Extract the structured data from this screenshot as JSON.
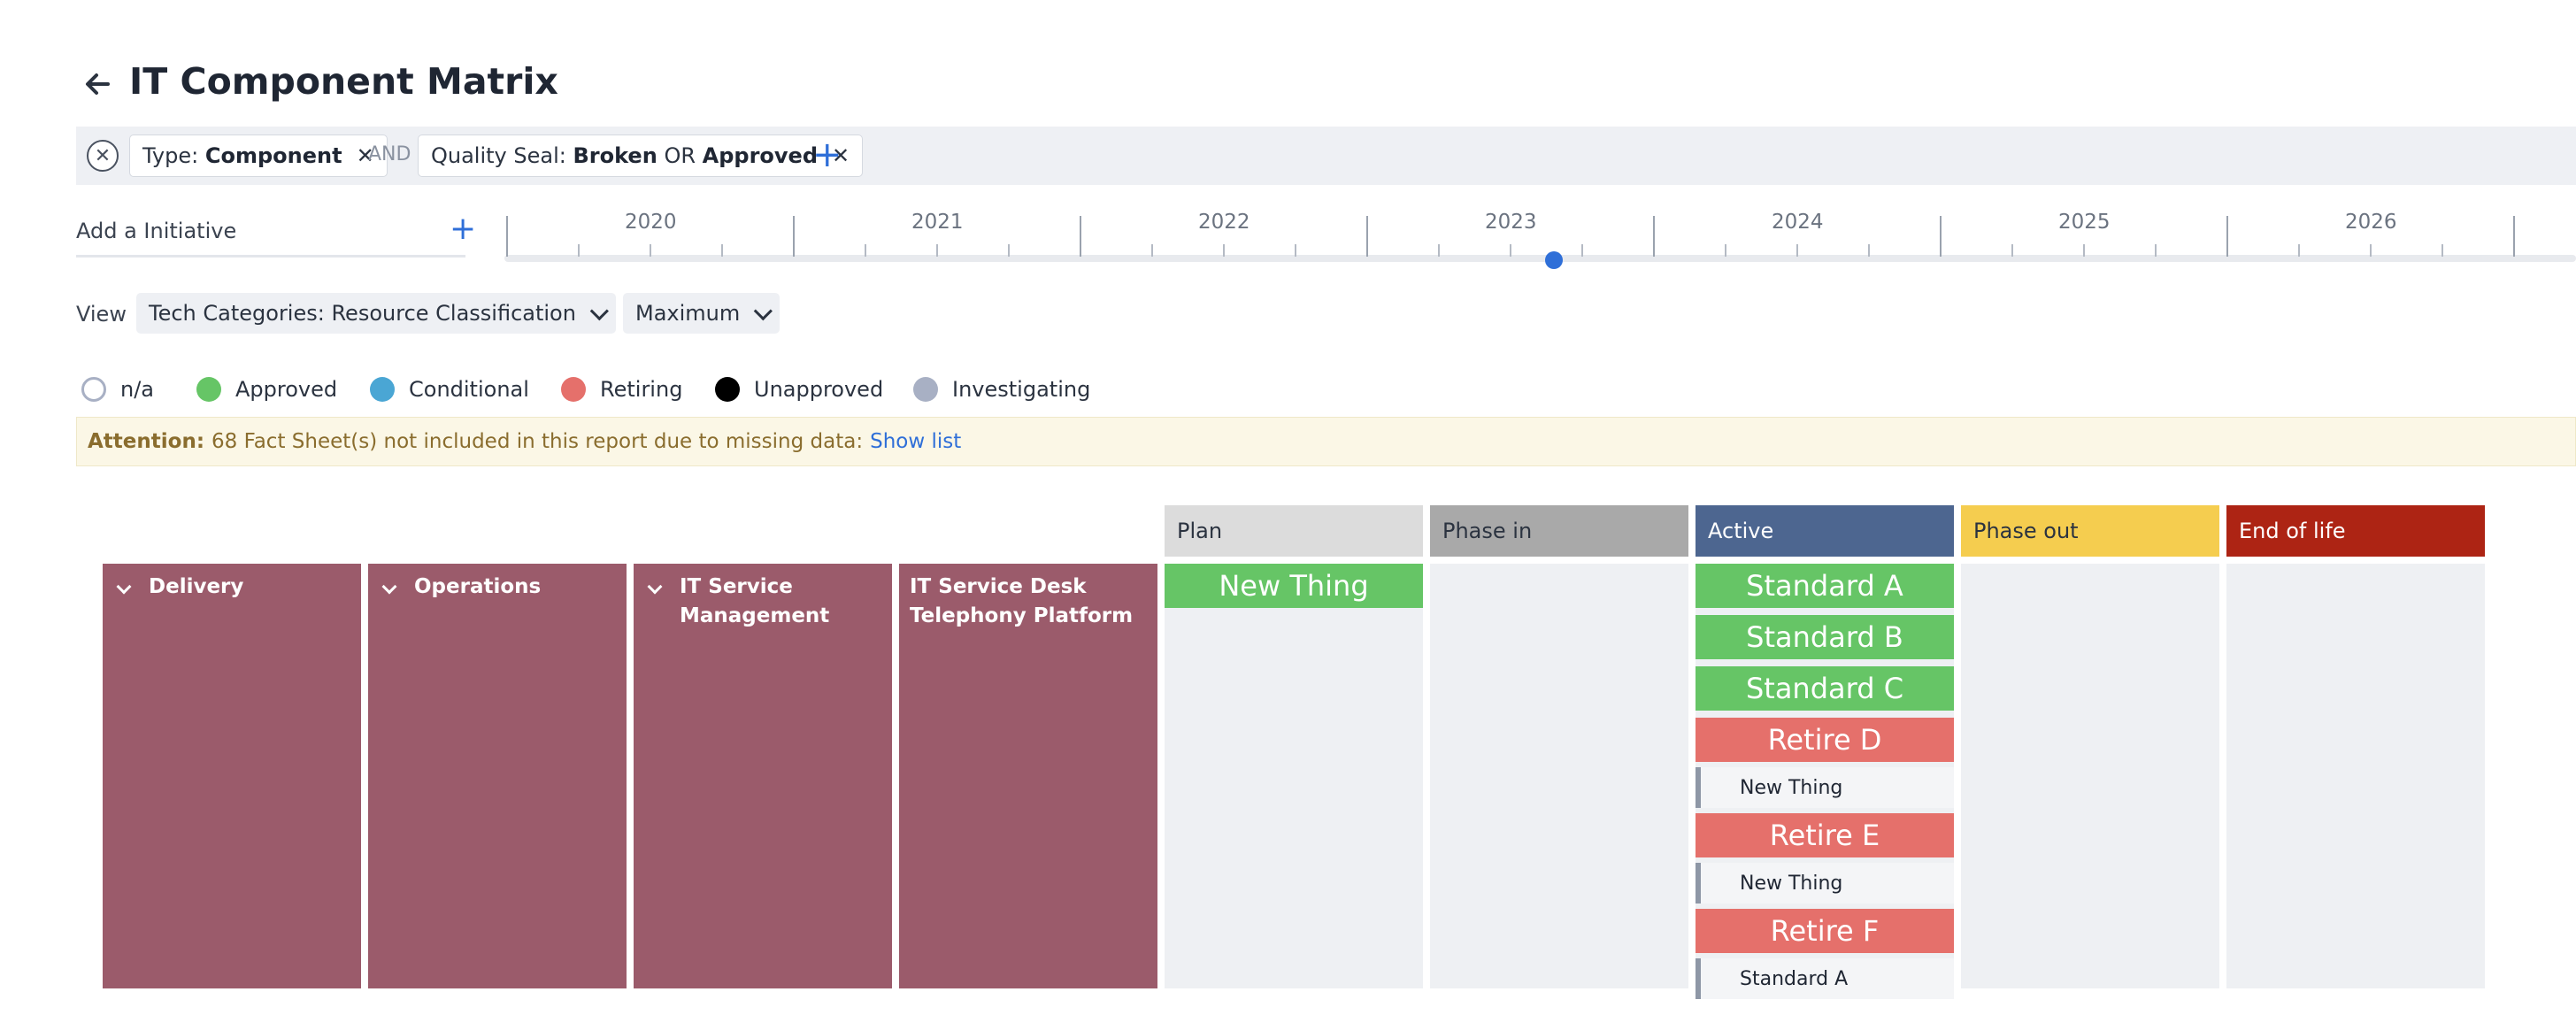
{
  "page": {
    "title": "IT Component Matrix"
  },
  "filters": {
    "chip1": {
      "key": "Type:",
      "value": "Component"
    },
    "and_label": "AND",
    "chip2": {
      "key": "Quality Seal:",
      "value1": "Broken",
      "or_label": "OR",
      "value2": "Approved"
    }
  },
  "timeline": {
    "add_initiative": "Add a Initiative",
    "years": [
      "2020",
      "2021",
      "2022",
      "2023",
      "2024",
      "2025",
      "2026"
    ]
  },
  "view": {
    "label": "View",
    "selected": "Tech Categories: Resource Classification",
    "mode": "Maximum"
  },
  "legend": [
    {
      "label": "n/a",
      "color": "#ffffff"
    },
    {
      "label": "Approved",
      "color": "#66c566"
    },
    {
      "label": "Conditional",
      "color": "#4aa6d4"
    },
    {
      "label": "Retiring",
      "color": "#e5706b"
    },
    {
      "label": "Unapproved",
      "color": "#000000"
    },
    {
      "label": "Investigating",
      "color": "#a8b0c4"
    }
  ],
  "attention": {
    "label": "Attention:",
    "message": "68 Fact Sheet(s) not included in this report due to missing data:",
    "link": "Show list"
  },
  "phases": [
    {
      "label": "Plan",
      "color": "#dcdcdc",
      "text_color": "#2b3340"
    },
    {
      "label": "Phase in",
      "color": "#a9a9a9",
      "text_color": "#2b3340"
    },
    {
      "label": "Active",
      "color": "#4d6690",
      "text_color": "#ffffff"
    },
    {
      "label": "Phase out",
      "color": "#f5cd4f",
      "text_color": "#2b3340"
    },
    {
      "label": "End of life",
      "color": "#ad2414",
      "text_color": "#ffffff"
    }
  ],
  "categories": [
    {
      "label": "Delivery"
    },
    {
      "label": "Operations"
    },
    {
      "label": "IT Service Management"
    },
    {
      "label": "IT Service Desk Telephony Platform"
    }
  ],
  "cells": {
    "plan": [
      {
        "label": "New Thing",
        "status": "approved"
      }
    ],
    "active": [
      {
        "label": "Standard A",
        "status": "approved"
      },
      {
        "label": "Standard B",
        "status": "approved"
      },
      {
        "label": "Standard C",
        "status": "approved"
      },
      {
        "label": "Retire D",
        "status": "retiring",
        "successor": "New Thing"
      },
      {
        "label": "Retire E",
        "status": "retiring",
        "successor": "New Thing"
      },
      {
        "label": "Retire F",
        "status": "retiring",
        "successor": "Standard A"
      }
    ]
  }
}
